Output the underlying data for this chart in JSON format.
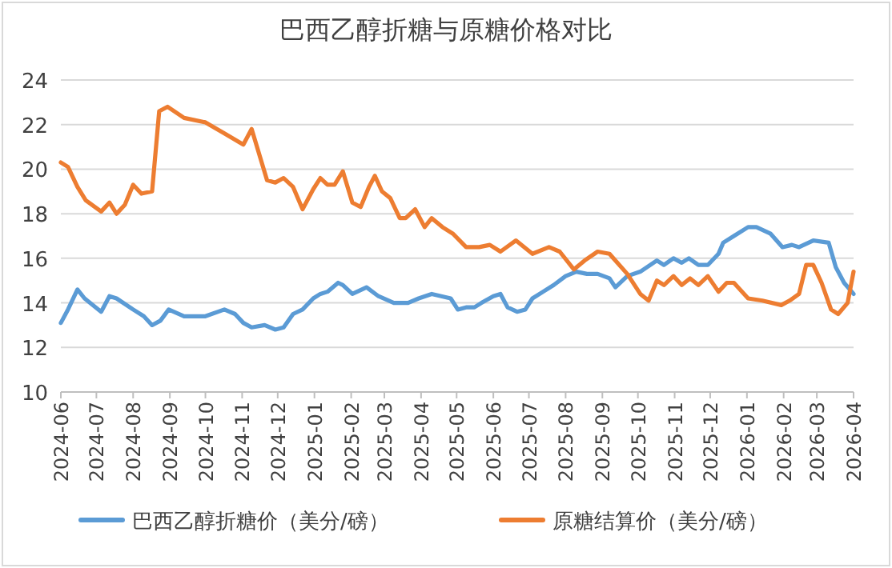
{
  "chart_data": {
    "type": "line",
    "title": "巴西乙醇折糖与原糖价格对比",
    "xlim": [
      "2024-06-01",
      "2026-04-01"
    ],
    "xticks": [
      "2024-06",
      "2024-07",
      "2024-08",
      "2024-09",
      "2024-10",
      "2024-11",
      "2024-12",
      "2025-01",
      "2025-02",
      "2025-03",
      "2025-04",
      "2025-05",
      "2025-06",
      "2025-07",
      "2025-08",
      "2025-09",
      "2025-10",
      "2025-11",
      "2025-12",
      "2026-01",
      "2026-02",
      "2026-03",
      "2026-04"
    ],
    "ylim": [
      10,
      24
    ],
    "yticks": [
      10,
      12,
      14,
      16,
      18,
      20,
      22,
      24
    ],
    "grid": "y",
    "legend": "bottom",
    "series": [
      {
        "name": "巴西乙醇折糖价（美分/磅）",
        "color": "#5b9bd5",
        "x": [
          "2024-06-01",
          "2024-06-07",
          "2024-06-15",
          "2024-06-21",
          "2024-07-05",
          "2024-07-12",
          "2024-07-18",
          "2024-08-01",
          "2024-08-10",
          "2024-08-17",
          "2024-08-24",
          "2024-08-31",
          "2024-09-13",
          "2024-10-01",
          "2024-10-17",
          "2024-10-26",
          "2024-11-02",
          "2024-11-09",
          "2024-11-20",
          "2024-11-29",
          "2024-12-06",
          "2024-12-14",
          "2024-12-22",
          "2024-12-31",
          "2025-01-06",
          "2025-01-12",
          "2025-01-21",
          "2025-01-25",
          "2025-02-02",
          "2025-02-14",
          "2025-02-24",
          "2025-03-09",
          "2025-03-21",
          "2025-03-30",
          "2025-04-10",
          "2025-04-26",
          "2025-05-02",
          "2025-05-09",
          "2025-05-16",
          "2025-05-22",
          "2025-06-01",
          "2025-06-07",
          "2025-06-13",
          "2025-06-21",
          "2025-06-28",
          "2025-07-04",
          "2025-07-13",
          "2025-07-22",
          "2025-08-01",
          "2025-08-10",
          "2025-08-19",
          "2025-08-28",
          "2025-09-07",
          "2025-09-12",
          "2025-09-22",
          "2025-10-03",
          "2025-10-17",
          "2025-10-23",
          "2025-10-31",
          "2025-11-07",
          "2025-11-13",
          "2025-11-21",
          "2025-11-29",
          "2025-12-08",
          "2025-12-12",
          "2025-12-21",
          "2026-01-02",
          "2026-01-09",
          "2026-01-21",
          "2026-01-31",
          "2026-02-08",
          "2026-02-14",
          "2026-02-26",
          "2026-03-11",
          "2026-03-17",
          "2026-03-24",
          "2026-04-01"
        ],
        "values": [
          13.1,
          13.7,
          14.6,
          14.2,
          13.6,
          14.3,
          14.2,
          13.7,
          13.4,
          13.0,
          13.2,
          13.7,
          13.4,
          13.4,
          13.7,
          13.5,
          13.1,
          12.9,
          13.0,
          12.8,
          12.9,
          13.5,
          13.7,
          14.2,
          14.4,
          14.5,
          14.9,
          14.8,
          14.4,
          14.7,
          14.3,
          14.0,
          14.0,
          14.2,
          14.4,
          14.2,
          13.7,
          13.8,
          13.8,
          14.0,
          14.3,
          14.4,
          13.8,
          13.6,
          13.7,
          14.2,
          14.5,
          14.8,
          15.2,
          15.4,
          15.3,
          15.3,
          15.1,
          14.7,
          15.2,
          15.4,
          15.9,
          15.7,
          16.0,
          15.8,
          16.0,
          15.7,
          15.7,
          16.2,
          16.7,
          17.0,
          17.4,
          17.4,
          17.1,
          16.5,
          16.6,
          16.5,
          16.8,
          16.7,
          15.6,
          14.9,
          14.4
        ]
      },
      {
        "name": "原糖结算价（美分/磅）",
        "color": "#ed7d31",
        "x": [
          "2024-06-01",
          "2024-06-07",
          "2024-06-15",
          "2024-06-22",
          "2024-07-05",
          "2024-07-12",
          "2024-07-18",
          "2024-07-25",
          "2024-08-01",
          "2024-08-08",
          "2024-08-17",
          "2024-08-23",
          "2024-08-30",
          "2024-09-13",
          "2024-10-01",
          "2024-10-17",
          "2024-11-02",
          "2024-11-09",
          "2024-11-22",
          "2024-11-29",
          "2024-12-06",
          "2024-12-14",
          "2024-12-22",
          "2024-12-31",
          "2025-01-06",
          "2025-01-12",
          "2025-01-18",
          "2025-01-25",
          "2025-02-02",
          "2025-02-09",
          "2025-02-16",
          "2025-02-21",
          "2025-02-27",
          "2025-03-06",
          "2025-03-14",
          "2025-03-19",
          "2025-03-27",
          "2025-04-04",
          "2025-04-10",
          "2025-04-19",
          "2025-04-28",
          "2025-05-09",
          "2025-05-20",
          "2025-05-29",
          "2025-06-07",
          "2025-06-20",
          "2025-07-04",
          "2025-07-18",
          "2025-07-27",
          "2025-08-08",
          "2025-08-17",
          "2025-08-28",
          "2025-09-07",
          "2025-09-22",
          "2025-10-03",
          "2025-10-10",
          "2025-10-17",
          "2025-10-23",
          "2025-10-31",
          "2025-11-07",
          "2025-11-14",
          "2025-11-21",
          "2025-11-29",
          "2025-12-08",
          "2025-12-15",
          "2025-12-21",
          "2026-01-02",
          "2026-01-14",
          "2026-01-30",
          "2026-02-06",
          "2026-02-14",
          "2026-02-20",
          "2026-02-26",
          "2026-03-05",
          "2026-03-13",
          "2026-03-19",
          "2026-03-27",
          "2026-04-01"
        ],
        "values": [
          20.3,
          20.1,
          19.2,
          18.6,
          18.1,
          18.5,
          18.0,
          18.4,
          19.3,
          18.9,
          19.0,
          22.6,
          22.8,
          22.3,
          22.1,
          21.6,
          21.1,
          21.8,
          19.5,
          19.4,
          19.6,
          19.2,
          18.2,
          19.1,
          19.6,
          19.3,
          19.3,
          19.9,
          18.5,
          18.3,
          19.2,
          19.7,
          19.0,
          18.7,
          17.8,
          17.8,
          18.2,
          17.4,
          17.8,
          17.4,
          17.1,
          16.5,
          16.5,
          16.6,
          16.3,
          16.8,
          16.2,
          16.5,
          16.3,
          15.5,
          15.9,
          16.3,
          16.2,
          15.3,
          14.4,
          14.1,
          15.0,
          14.8,
          15.2,
          14.8,
          15.1,
          14.8,
          15.2,
          14.5,
          14.9,
          14.9,
          14.2,
          14.1,
          13.9,
          14.1,
          14.4,
          15.7,
          15.7,
          14.9,
          13.7,
          13.5,
          14.0,
          15.4
        ]
      }
    ]
  }
}
